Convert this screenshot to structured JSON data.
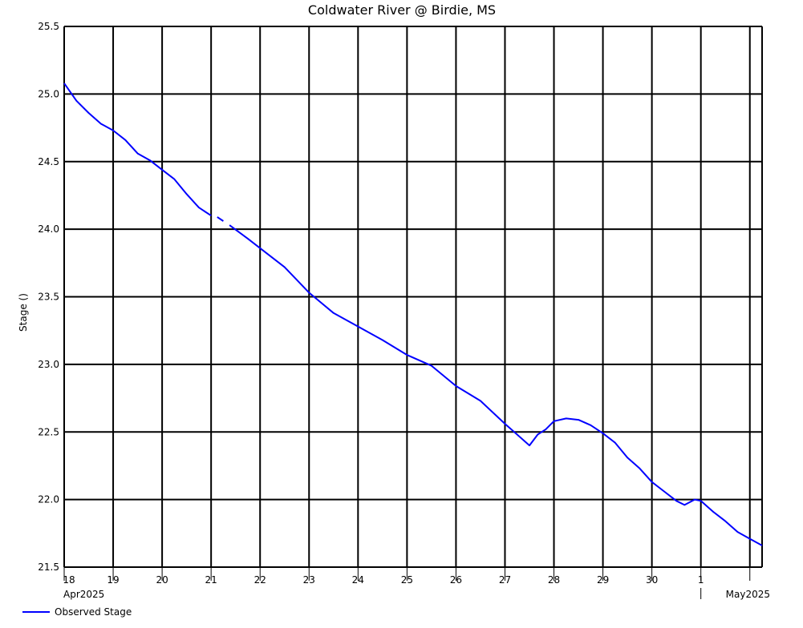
{
  "chart_data": {
    "type": "line",
    "title": "Coldwater River @ Birdie, MS",
    "xlabel": "",
    "ylabel": "Stage ()",
    "ylim": [
      21.5,
      25.5
    ],
    "yticks": [
      "21.5",
      "22.0",
      "22.5",
      "23.0",
      "23.5",
      "24.0",
      "24.5",
      "25.0",
      "25.5"
    ],
    "xlim": [
      "2025-04-18T00:00",
      "2025-05-02T06:00"
    ],
    "x_day_labels": [
      "18",
      "19",
      "20",
      "21",
      "22",
      "23",
      "24",
      "25",
      "26",
      "27",
      "28",
      "29",
      "30",
      "1"
    ],
    "x_month_labels": [
      "Apr2025",
      "May2025"
    ],
    "grid": true,
    "legend_position": "bottom-left",
    "series": [
      {
        "name": "Observed Stage",
        "color": "#0000ff",
        "segments": [
          [
            [
              "2025-04-18T00:00",
              25.08
            ],
            [
              "2025-04-18T06:00",
              24.95
            ],
            [
              "2025-04-18T12:00",
              24.86
            ],
            [
              "2025-04-18T18:00",
              24.78
            ],
            [
              "2025-04-19T00:00",
              24.73
            ],
            [
              "2025-04-19T06:00",
              24.66
            ],
            [
              "2025-04-19T12:00",
              24.56
            ],
            [
              "2025-04-19T18:00",
              24.51
            ],
            [
              "2025-04-20T00:00",
              24.44
            ],
            [
              "2025-04-20T06:00",
              24.37
            ],
            [
              "2025-04-20T12:00",
              24.26
            ],
            [
              "2025-04-20T18:00",
              24.16
            ],
            [
              "2025-04-21T00:00",
              24.1
            ]
          ],
          [
            [
              "2025-04-21T03:00",
              24.09
            ],
            [
              "2025-04-21T06:00",
              24.06
            ]
          ],
          [
            [
              "2025-04-21T09:00",
              24.03
            ],
            [
              "2025-04-21T18:00",
              23.93
            ],
            [
              "2025-04-22T00:00",
              23.86
            ],
            [
              "2025-04-22T12:00",
              23.72
            ],
            [
              "2025-04-23T00:00",
              23.53
            ],
            [
              "2025-04-23T12:00",
              23.38
            ],
            [
              "2025-04-24T00:00",
              23.28
            ],
            [
              "2025-04-24T12:00",
              23.18
            ],
            [
              "2025-04-25T00:00",
              23.07
            ],
            [
              "2025-04-25T12:00",
              22.99
            ],
            [
              "2025-04-26T00:00",
              22.84
            ],
            [
              "2025-04-26T12:00",
              22.73
            ],
            [
              "2025-04-27T00:00",
              22.56
            ],
            [
              "2025-04-27T12:00",
              22.4
            ],
            [
              "2025-04-27T16:00",
              22.48
            ],
            [
              "2025-04-27T20:00",
              22.52
            ],
            [
              "2025-04-28T00:00",
              22.58
            ],
            [
              "2025-04-28T06:00",
              22.6
            ],
            [
              "2025-04-28T12:00",
              22.59
            ],
            [
              "2025-04-28T18:00",
              22.55
            ],
            [
              "2025-04-29T00:00",
              22.49
            ],
            [
              "2025-04-29T06:00",
              22.42
            ],
            [
              "2025-04-29T12:00",
              22.31
            ],
            [
              "2025-04-29T18:00",
              22.23
            ],
            [
              "2025-04-30T00:00",
              22.13
            ],
            [
              "2025-04-30T06:00",
              22.06
            ],
            [
              "2025-04-30T12:00",
              21.99
            ],
            [
              "2025-04-30T16:00",
              21.96
            ],
            [
              "2025-04-30T21:00",
              22.0
            ],
            [
              "2025-05-01T00:00",
              21.99
            ],
            [
              "2025-05-01T06:00",
              21.91
            ],
            [
              "2025-05-01T12:00",
              21.84
            ],
            [
              "2025-05-01T18:00",
              21.76
            ],
            [
              "2025-05-02T00:00",
              21.71
            ],
            [
              "2025-05-02T06:00",
              21.66
            ]
          ]
        ]
      }
    ]
  }
}
